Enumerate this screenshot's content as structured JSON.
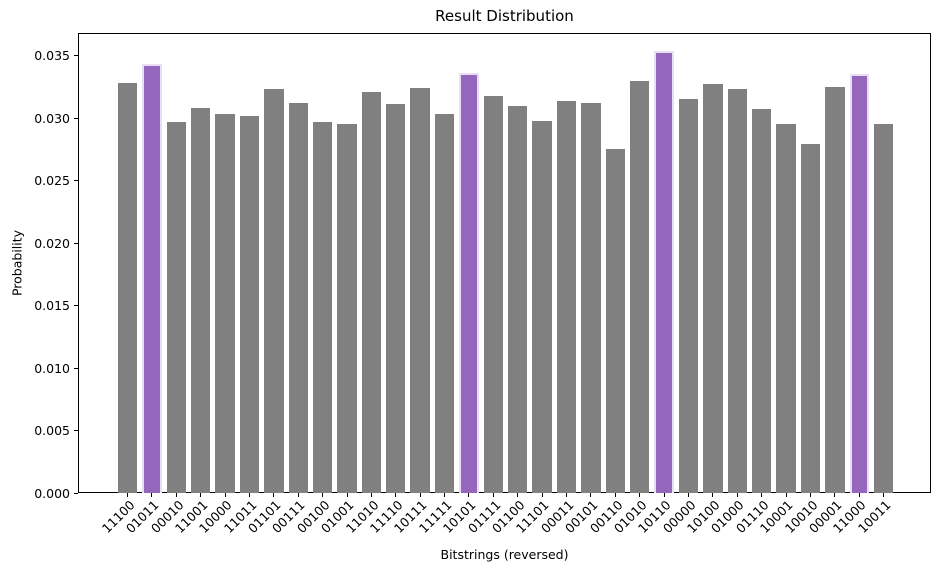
{
  "chart_data": {
    "type": "bar",
    "title": "Result Distribution",
    "xlabel": "Bitstrings (reversed)",
    "ylabel": "Probability",
    "ylim": [
      0,
      0.0368
    ],
    "grid": false,
    "legend": false,
    "y_tick_labels": [
      "0.000",
      "0.005",
      "0.010",
      "0.015",
      "0.020",
      "0.025",
      "0.030",
      "0.035"
    ],
    "categories": [
      "11100",
      "01011",
      "00010",
      "11001",
      "10000",
      "11011",
      "01101",
      "00111",
      "00100",
      "01001",
      "11010",
      "11110",
      "10111",
      "11111",
      "10101",
      "01111",
      "01100",
      "11101",
      "00011",
      "00101",
      "00110",
      "01010",
      "10110",
      "00000",
      "10100",
      "01000",
      "01110",
      "10001",
      "10010",
      "00001",
      "11000",
      "10011"
    ],
    "values": [
      0.0328,
      0.0343,
      0.0297,
      0.0308,
      0.0303,
      0.0302,
      0.0323,
      0.0312,
      0.0297,
      0.0295,
      0.0321,
      0.0311,
      0.0324,
      0.0303,
      0.0336,
      0.0318,
      0.031,
      0.0298,
      0.0314,
      0.0312,
      0.0275,
      0.033,
      0.0354,
      0.0315,
      0.0327,
      0.0323,
      0.0307,
      0.0295,
      0.0279,
      0.0325,
      0.0335,
      0.0295
    ],
    "highlighted_categories": [
      "01011",
      "10101",
      "10110",
      "11000"
    ],
    "colors": {
      "bar_default": "#808080",
      "bar_highlight": "#9467bd",
      "highlight_edge": "#e9def4",
      "axis": "#000000",
      "background": "#ffffff"
    }
  }
}
